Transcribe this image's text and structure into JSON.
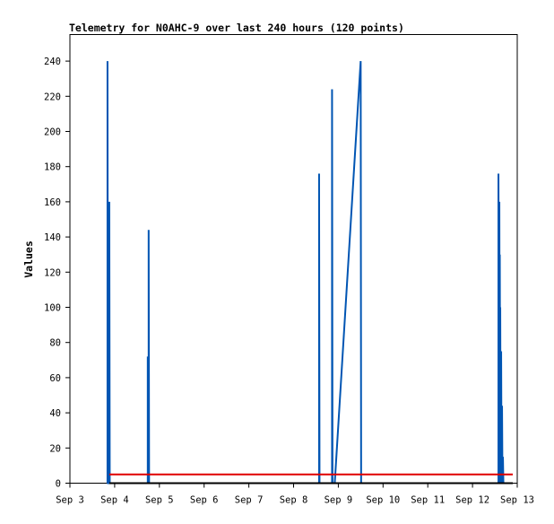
{
  "chart_data": {
    "type": "line",
    "title": "Telemetry for N0AHC-9 over last 240 hours (120 points)",
    "xlabel": "",
    "ylabel": "Values",
    "x_ticks": [
      "Sep 3",
      "Sep 4",
      "Sep 5",
      "Sep 6",
      "Sep 7",
      "Sep 8",
      "Sep 9",
      "Sep 10",
      "Sep 11",
      "Sep 12",
      "Sep 13"
    ],
    "y_ticks": [
      "0",
      "20",
      "40",
      "60",
      "80",
      "100",
      "120",
      "140",
      "160",
      "180",
      "200",
      "220",
      "240"
    ],
    "xlim_days": [
      3,
      13
    ],
    "ylim": [
      0,
      255
    ],
    "grid": false,
    "legend": "none",
    "series": [
      {
        "color": "#0055b3",
        "points": [
          [
            3.84,
            0
          ],
          [
            3.84,
            240
          ],
          [
            3.85,
            0
          ],
          [
            3.88,
            0
          ],
          [
            3.88,
            160
          ],
          [
            3.89,
            0
          ],
          [
            4.74,
            0
          ],
          [
            4.74,
            72
          ],
          [
            4.76,
            0
          ],
          [
            4.76,
            144
          ],
          [
            4.77,
            0
          ],
          [
            8.57,
            0
          ],
          [
            8.57,
            176
          ],
          [
            8.58,
            0
          ],
          [
            8.86,
            0
          ],
          [
            8.86,
            224
          ],
          [
            8.87,
            0
          ],
          [
            8.92,
            0
          ],
          [
            9.5,
            240
          ],
          [
            9.51,
            0
          ],
          [
            12.58,
            0
          ],
          [
            12.58,
            176
          ],
          [
            12.6,
            0
          ],
          [
            12.6,
            160
          ],
          [
            12.61,
            0
          ],
          [
            12.61,
            130
          ],
          [
            12.62,
            0
          ],
          [
            12.62,
            100
          ],
          [
            12.63,
            0
          ],
          [
            12.64,
            0
          ],
          [
            12.64,
            75
          ],
          [
            12.65,
            0
          ],
          [
            12.66,
            0
          ],
          [
            12.66,
            44
          ],
          [
            12.67,
            0
          ],
          [
            12.68,
            0
          ],
          [
            12.68,
            15
          ],
          [
            12.69,
            0
          ]
        ]
      },
      {
        "color": "#e00000",
        "points": [
          [
            3.88,
            5
          ],
          [
            12.9,
            5
          ]
        ]
      },
      {
        "color": "#000000",
        "points": [
          [
            3.88,
            0
          ],
          [
            12.9,
            0
          ]
        ]
      }
    ]
  }
}
